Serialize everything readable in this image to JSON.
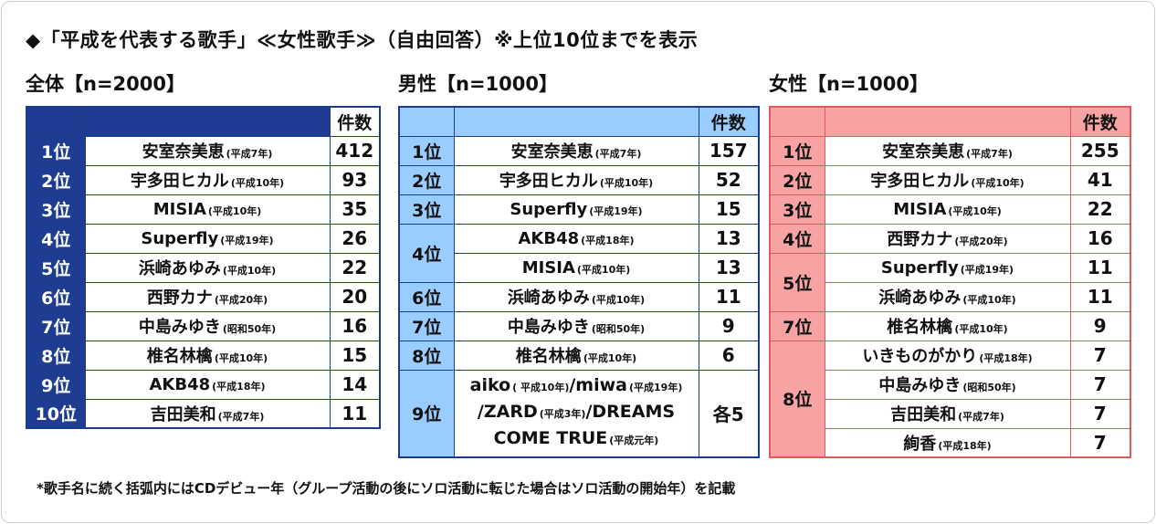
{
  "title": "◆「平成を代表する歌手」≪女性歌手≫（自由回答）※上位10位までを表示",
  "count_header": "件数",
  "footnote": "*歌手名に続く括弧内にはCDデビュー年（グループ活動の後にソロ活動に転じた場合はソロ活動の開始年）を記載",
  "colors": {
    "overall": "#1f3c93",
    "male": "#99ccff",
    "female": "#f7a3a3",
    "female_border": "#e05a5a"
  },
  "overall": {
    "heading": "全体【n=2000】",
    "rows": [
      {
        "rank": "1位",
        "name": "安室奈美恵",
        "year": "(平成7年)",
        "count": "412"
      },
      {
        "rank": "2位",
        "name": "宇多田ヒカル",
        "year": "(平成10年)",
        "count": "93"
      },
      {
        "rank": "3位",
        "name": "MISIA",
        "year": "(平成10年)",
        "count": "35"
      },
      {
        "rank": "4位",
        "name": "Superfly",
        "year": "(平成19年)",
        "count": "26"
      },
      {
        "rank": "5位",
        "name": "浜崎あゆみ",
        "year": "(平成10年)",
        "count": "22"
      },
      {
        "rank": "6位",
        "name": "西野カナ",
        "year": "(平成20年)",
        "count": "20"
      },
      {
        "rank": "7位",
        "name": "中島みゆき",
        "year": "(昭和50年)",
        "count": "16"
      },
      {
        "rank": "8位",
        "name": "椎名林檎",
        "year": "(平成10年)",
        "count": "15"
      },
      {
        "rank": "9位",
        "name": "AKB48",
        "year": "(平成18年)",
        "count": "14"
      },
      {
        "rank": "10位",
        "name": "吉田美和",
        "year": "(平成7年)",
        "count": "11"
      }
    ]
  },
  "male": {
    "heading": "男性【n=1000】",
    "rows": [
      {
        "rank": "1位",
        "name": "安室奈美恵",
        "year": "(平成7年)",
        "count": "157"
      },
      {
        "rank": "2位",
        "name": "宇多田ヒカル",
        "year": "(平成10年)",
        "count": "52"
      },
      {
        "rank": "3位",
        "name": "Superfly",
        "year": "(平成19年)",
        "count": "15"
      },
      {
        "rank": "4位",
        "name": "AKB48",
        "year": "(平成18年)",
        "count": "13"
      },
      {
        "rank": "",
        "name": "MISIA",
        "year": "(平成10年)",
        "count": "13"
      },
      {
        "rank": "6位",
        "name": "浜崎あゆみ",
        "year": "(平成10年)",
        "count": "11"
      },
      {
        "rank": "7位",
        "name": "中島みゆき",
        "year": "(昭和50年)",
        "count": "9"
      },
      {
        "rank": "8位",
        "name": "椎名林檎",
        "year": "(平成10年)",
        "count": "6"
      }
    ],
    "last": {
      "rank": "9位",
      "line1_a": "aiko",
      "line1_a_year": "( 平成10年)",
      "line1_b": "/miwa",
      "line1_b_year": "(平成19年)",
      "line2": "/ZARD",
      "line2_year": "(平成3年)",
      "line2_b": "/DREAMS",
      "line3": "COME TRUE",
      "line3_year": "(平成元年)",
      "count": "各5"
    }
  },
  "female": {
    "heading": "女性【n=1000】",
    "rows": [
      {
        "rank": "1位",
        "name": "安室奈美恵",
        "year": "(平成7年)",
        "count": "255"
      },
      {
        "rank": "2位",
        "name": "宇多田ヒカル",
        "year": "(平成10年)",
        "count": "41"
      },
      {
        "rank": "3位",
        "name": "MISIA",
        "year": "(平成10年)",
        "count": "22"
      },
      {
        "rank": "4位",
        "name": "西野カナ",
        "year": "(平成20年)",
        "count": "16"
      },
      {
        "rank": "5位",
        "name": "Superfly",
        "year": "(平成19年)",
        "count": "11"
      },
      {
        "rank": "",
        "name": "浜崎あゆみ",
        "year": "(平成10年)",
        "count": "11"
      },
      {
        "rank": "7位",
        "name": "椎名林檎",
        "year": "(平成10年)",
        "count": "9"
      },
      {
        "rank": "8位",
        "name": "いきものがかり",
        "year": "(平成18年)",
        "count": "7"
      },
      {
        "rank": "",
        "name": "中島みゆき",
        "year": "(昭和50年)",
        "count": "7"
      },
      {
        "rank": "",
        "name": "吉田美和",
        "year": "(平成7年)",
        "count": "7"
      },
      {
        "rank": "",
        "name": "絢香",
        "year": "(平成18年)",
        "count": "7"
      }
    ]
  }
}
